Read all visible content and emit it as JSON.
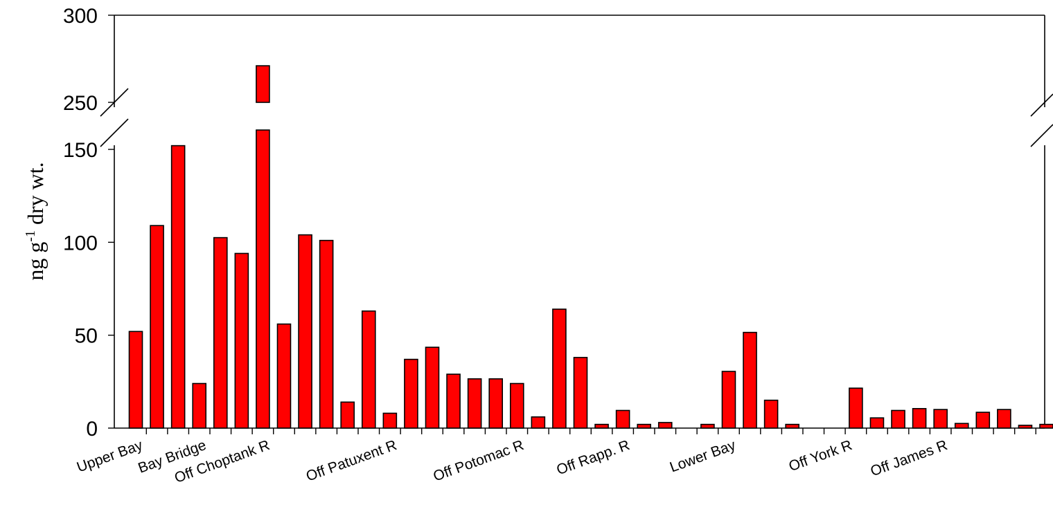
{
  "colors": {
    "bar": "#ff0000",
    "axis": "#000000"
  },
  "chart_data": {
    "type": "bar",
    "xlabel": "",
    "ylabel": {
      "main": "ng g",
      "superscript": "-1",
      "suffix": " dry wt."
    },
    "y_axis_break": [
      160,
      250
    ],
    "ylim": [
      0,
      300
    ],
    "yticks_lower": [
      "0",
      "50",
      "100",
      "150"
    ],
    "yticks_upper": [
      "250",
      "300"
    ],
    "ytick_values": [
      0,
      50,
      100,
      150,
      250,
      300
    ],
    "category_labels": [
      "Upper Bay",
      "Bay Bridge",
      "Off Choptank R",
      "Off Patuxent R",
      "Off Potomac R",
      "Off Rapp. R",
      "Lower Bay",
      "Off York R",
      "Off James R"
    ],
    "category_label_positions": [
      0.5,
      3.5,
      6.5,
      12.5,
      18.5,
      23.5,
      28.5,
      34.0,
      38.5
    ],
    "values": [
      52,
      109,
      152,
      24,
      102.5,
      94,
      271,
      56,
      104,
      101,
      14,
      63,
      8,
      37,
      43.5,
      29,
      26.5,
      26.5,
      24,
      6,
      64,
      38,
      2,
      9.5,
      2,
      3,
      0,
      2,
      30.5,
      51.5,
      15,
      2,
      0,
      0,
      21.5,
      5.5,
      9.5,
      10.5,
      10,
      2.5,
      8.5,
      10,
      1.5,
      2
    ]
  }
}
